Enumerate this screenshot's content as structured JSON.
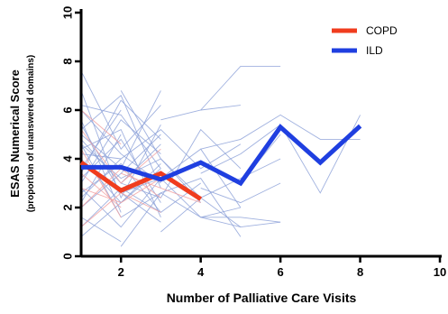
{
  "chart_data": {
    "type": "line",
    "title": "",
    "xlabel": "Number of Palliative Care Visits",
    "ylabel": "ESAS Numerical Score",
    "ylabel_sub": "(proportion of unanswered domains)",
    "xlim": [
      1,
      10
    ],
    "ylim": [
      0,
      10
    ],
    "x_ticks": [
      2,
      4,
      6,
      8,
      10
    ],
    "y_ticks": [
      0,
      2,
      4,
      6,
      8,
      10
    ],
    "grid": false,
    "legend_position": "top-right",
    "colors": {
      "COPD": "#f03c1e",
      "ILD": "#1f3fe0",
      "copd_thin": "#f2a0a0",
      "ild_thin": "#8fa3d9"
    },
    "series": [
      {
        "name": "COPD",
        "x": [
          1,
          2,
          3,
          4
        ],
        "y": [
          3.85,
          2.7,
          3.4,
          2.35
        ]
      },
      {
        "name": "ILD",
        "x": [
          1,
          2,
          3,
          4,
          5,
          6,
          7,
          8
        ],
        "y": [
          3.65,
          3.65,
          3.15,
          3.85,
          3.0,
          5.3,
          3.85,
          5.35
        ]
      }
    ],
    "individual_trajectories": {
      "ILD": [
        {
          "x": [
            1,
            2,
            3
          ],
          "y": [
            7.6,
            4.4,
            6.2
          ]
        },
        {
          "x": [
            1,
            2,
            3
          ],
          "y": [
            6.8,
            2.4,
            5.4
          ]
        },
        {
          "x": [
            1,
            2,
            3
          ],
          "y": [
            6.2,
            5.8,
            3.6
          ]
        },
        {
          "x": [
            1,
            2
          ],
          "y": [
            5.6,
            1.8
          ]
        },
        {
          "x": [
            1,
            2,
            3
          ],
          "y": [
            5.2,
            6.6,
            2.8
          ]
        },
        {
          "x": [
            1,
            2,
            3
          ],
          "y": [
            4.8,
            3.0,
            4.6
          ]
        },
        {
          "x": [
            1,
            2,
            3
          ],
          "y": [
            4.4,
            5.2,
            1.6
          ]
        },
        {
          "x": [
            1,
            2,
            3
          ],
          "y": [
            4.0,
            2.2,
            3.8
          ]
        },
        {
          "x": [
            1,
            2
          ],
          "y": [
            3.6,
            6.0
          ]
        },
        {
          "x": [
            1,
            2,
            3
          ],
          "y": [
            3.2,
            4.8,
            2.2
          ]
        },
        {
          "x": [
            1,
            2,
            3
          ],
          "y": [
            2.8,
            1.2,
            3.2
          ]
        },
        {
          "x": [
            1,
            2
          ],
          "y": [
            2.4,
            4.0
          ]
        },
        {
          "x": [
            1,
            2,
            3
          ],
          "y": [
            2.0,
            3.4,
            5.0
          ]
        },
        {
          "x": [
            1,
            2
          ],
          "y": [
            1.6,
            0.6
          ]
        },
        {
          "x": [
            1,
            2,
            3
          ],
          "y": [
            1.2,
            2.8,
            1.8
          ]
        },
        {
          "x": [
            1,
            2,
            3
          ],
          "y": [
            5.0,
            3.6,
            6.8
          ]
        },
        {
          "x": [
            1,
            2,
            3
          ],
          "y": [
            3.0,
            5.6,
            4.2
          ]
        },
        {
          "x": [
            1,
            2,
            3
          ],
          "y": [
            4.6,
            1.6,
            2.6
          ]
        },
        {
          "x": [
            1,
            2,
            3
          ],
          "y": [
            6.0,
            4.2,
            3.0
          ]
        },
        {
          "x": [
            1,
            2
          ],
          "y": [
            2.2,
            5.0
          ]
        },
        {
          "x": [
            1,
            2,
            3
          ],
          "y": [
            0.8,
            2.2,
            3.6
          ]
        },
        {
          "x": [
            1,
            2,
            3
          ],
          "y": [
            3.4,
            6.4,
            4.8
          ]
        },
        {
          "x": [
            1,
            2,
            3
          ],
          "y": [
            5.4,
            2.6,
            1.4
          ]
        },
        {
          "x": [
            1,
            2,
            3,
            4,
            5
          ],
          "y": [
            3.8,
            2.6,
            3.2,
            4.4,
            2.0
          ]
        },
        {
          "x": [
            1,
            2,
            3,
            4,
            5
          ],
          "y": [
            4.2,
            4.0,
            5.2,
            3.6,
            4.6
          ]
        },
        {
          "x": [
            1,
            2,
            3,
            4
          ],
          "y": [
            2.6,
            3.8,
            1.8,
            3.0
          ]
        },
        {
          "x": [
            2,
            3,
            4,
            5
          ],
          "y": [
            3.0,
            2.4,
            5.2,
            3.6
          ]
        },
        {
          "x": [
            1,
            2,
            3,
            4,
            5,
            6
          ],
          "y": [
            4.6,
            3.2,
            4.0,
            2.4,
            3.2,
            4.0
          ]
        },
        {
          "x": [
            3,
            4,
            5
          ],
          "y": [
            3.2,
            1.6,
            2.0
          ]
        },
        {
          "x": [
            4,
            5,
            6
          ],
          "y": [
            6.0,
            7.8,
            7.8
          ]
        },
        {
          "x": [
            3,
            4,
            5,
            6
          ],
          "y": [
            2.6,
            1.6,
            1.6,
            1.4
          ]
        },
        {
          "x": [
            4,
            5,
            6
          ],
          "y": [
            1.6,
            1.2,
            1.4
          ]
        },
        {
          "x": [
            3,
            4,
            5
          ],
          "y": [
            5.6,
            6.0,
            6.2
          ]
        },
        {
          "x": [
            4,
            5,
            6,
            7,
            8
          ],
          "y": [
            4.4,
            4.8,
            5.8,
            4.8,
            4.8
          ]
        },
        {
          "x": [
            4,
            5,
            6,
            7,
            8
          ],
          "y": [
            3.4,
            4.2,
            5.4,
            2.6,
            5.8
          ]
        },
        {
          "x": [
            4,
            5,
            6
          ],
          "y": [
            2.8,
            2.2,
            3.0
          ]
        },
        {
          "x": [
            5,
            6
          ],
          "y": [
            3.0,
            5.0
          ]
        },
        {
          "x": [
            3,
            4,
            5
          ],
          "y": [
            1.0,
            2.4,
            1.2
          ]
        },
        {
          "x": [
            2,
            3,
            4
          ],
          "y": [
            6.8,
            4.0,
            2.2
          ]
        },
        {
          "x": [
            2,
            3,
            4,
            5
          ],
          "y": [
            0.4,
            2.6,
            3.2,
            0.8
          ]
        }
      ],
      "COPD": [
        {
          "x": [
            1,
            2,
            3
          ],
          "y": [
            5.2,
            3.0,
            4.4
          ]
        },
        {
          "x": [
            1,
            2
          ],
          "y": [
            3.4,
            2.0
          ]
        },
        {
          "x": [
            1,
            2,
            3
          ],
          "y": [
            2.0,
            3.6,
            2.4
          ]
        },
        {
          "x": [
            1,
            2
          ],
          "y": [
            4.4,
            1.6
          ]
        },
        {
          "x": [
            1,
            2,
            3
          ],
          "y": [
            2.8,
            2.2,
            3.2
          ]
        },
        {
          "x": [
            1,
            2
          ],
          "y": [
            6.0,
            4.6
          ]
        },
        {
          "x": [
            1,
            2,
            3
          ],
          "y": [
            1.2,
            2.6,
            1.8
          ]
        },
        {
          "x": [
            2,
            3,
            4
          ],
          "y": [
            3.4,
            2.8,
            2.2
          ]
        }
      ]
    }
  }
}
